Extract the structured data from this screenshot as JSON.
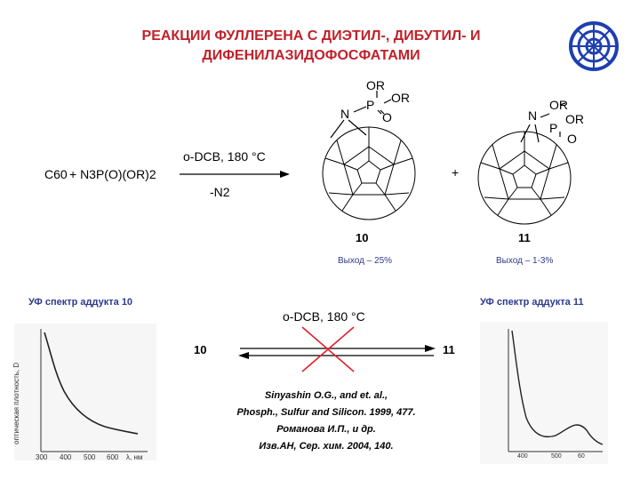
{
  "title": {
    "line1": "РЕАКЦИИ ФУЛЛЕРЕНА С ДИЭТИЛ-, ДИБУТИЛ- И",
    "line2": "ДИФЕНИЛАЗИДОФОСФАТАМИ"
  },
  "reaction": {
    "reagent_c60": "C60",
    "reagent_azide": "+ N3P(O)(OR)2",
    "condition_top": "o-DCB, 180 °C",
    "condition_bottom": "-N2",
    "plus": "+",
    "product1": {
      "number": "10",
      "yield": "Выход – 25%",
      "groups": [
        "OR",
        "P",
        "OR",
        "O",
        "N"
      ]
    },
    "product2": {
      "number": "11",
      "yield": "Выход – 1-3%",
      "groups": [
        "OR",
        "P",
        "OR",
        "O",
        "N"
      ]
    }
  },
  "isomerization": {
    "condition": "o-DCB, 180 °C",
    "left": "10",
    "right": "11"
  },
  "spectra": {
    "left_title": "УФ спектр аддукта 10",
    "right_title": "УФ спектр аддукта 11",
    "left_ylabel": "оптическая плотность, D",
    "left_xticks": [
      "300",
      "400",
      "500",
      "600"
    ],
    "left_xunit": "λ, нм",
    "right_xticks": [
      "400",
      "500",
      "60"
    ]
  },
  "reference": {
    "line1": "Sinyashin O.G., and et. al.,",
    "line2": "Phosph., Sulfur and Silicon. 1999, 477.",
    "line3": "Романова И.П., и др.",
    "line4": "Изв.АН, Сер. хим. 2004, 140."
  },
  "colors": {
    "title": "#c0212a",
    "accent_blue": "#2e3a8c",
    "cross": "#e0202a"
  }
}
